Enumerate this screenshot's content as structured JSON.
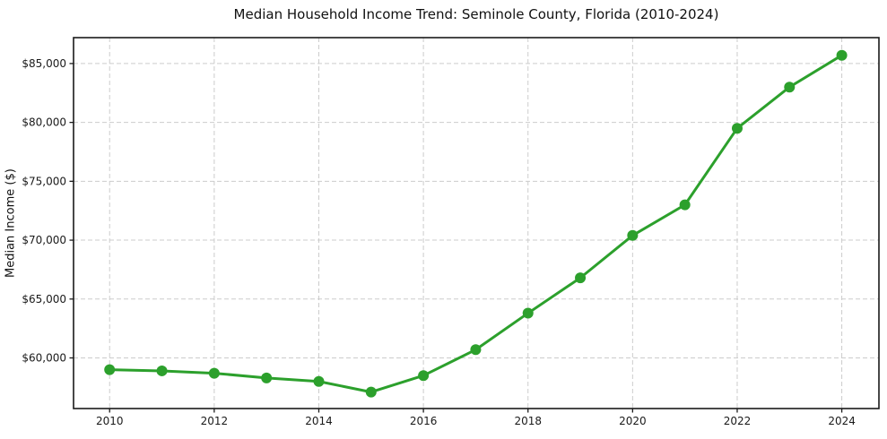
{
  "chart_data": {
    "type": "line",
    "title": "Median Household Income Trend: Seminole County, Florida (2010-2024)",
    "xlabel": "",
    "ylabel": "Median Income ($)",
    "series": [
      {
        "name": "Median household income",
        "x": [
          2010,
          2011,
          2012,
          2013,
          2014,
          2015,
          2016,
          2017,
          2018,
          2019,
          2020,
          2021,
          2022,
          2023,
          2024
        ],
        "values": [
          59000,
          58900,
          58700,
          58300,
          58000,
          57100,
          58500,
          60700,
          63800,
          66800,
          70400,
          73000,
          79500,
          83000,
          85700
        ]
      }
    ],
    "xticks": [
      2010,
      2012,
      2014,
      2016,
      2018,
      2020,
      2022,
      2024
    ],
    "xtick_labels": [
      "2010",
      "2012",
      "2014",
      "2016",
      "2018",
      "2020",
      "2022",
      "2024"
    ],
    "yticks": [
      60000,
      65000,
      70000,
      75000,
      80000,
      85000
    ],
    "ytick_labels": [
      "$60,000",
      "$65,000",
      "$70,000",
      "$75,000",
      "$80,000",
      "$85,000"
    ],
    "xlim": [
      2009.31,
      2024.71
    ],
    "ylim": [
      55700,
      87200
    ],
    "grid": true,
    "grid_style": "dashed",
    "legend": false,
    "colors": {
      "line": "#2ca02c",
      "marker": "#2ca02c",
      "grid": "#cccccc",
      "spine": "#1a1a1a",
      "background": "#ffffff",
      "text": "#111111"
    },
    "line_width": 3,
    "marker_radius": 6
  }
}
